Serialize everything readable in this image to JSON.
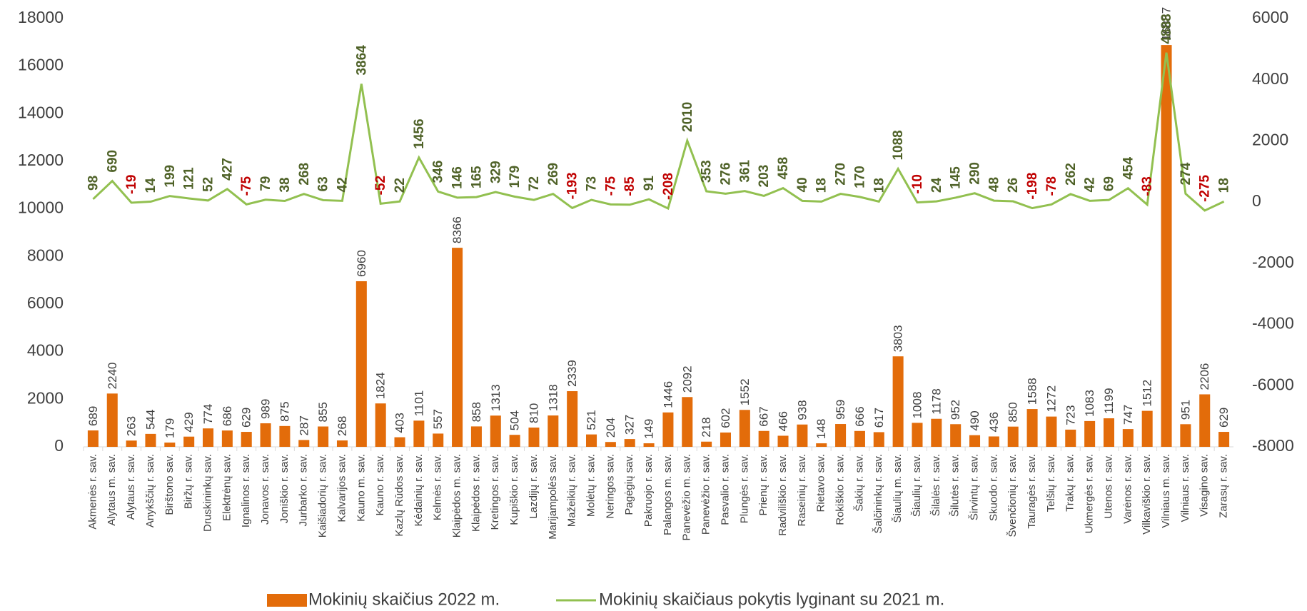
{
  "chart_data": {
    "type": "bar_line",
    "categories": [
      "Akmenės r. sav.",
      "Alytaus m. sav.",
      "Alytaus r. sav.",
      "Anykščių r. sav.",
      "Birštono sav.",
      "Biržų r. sav.",
      "Druskininkų sav.",
      "Elektrėnų sav.",
      "Ignalinos r. sav.",
      "Jonavos r. sav.",
      "Joniškio r. sav.",
      "Jurbarko r. sav.",
      "Kaišiadorių r. sav.",
      "Kalvarijos sav.",
      "Kauno m. sav.",
      "Kauno r. sav.",
      "Kazlų Rūdos sav.",
      "Kėdainių r. sav.",
      "Kelmės r. sav.",
      "Klaipėdos m. sav.",
      "Klaipėdos r. sav.",
      "Kretingos r. sav.",
      "Kupiškio r. sav.",
      "Lazdijų r. sav.",
      "Marijampolės sav.",
      "Mažeikių r. sav.",
      "Molėtų r. sav.",
      "Neringos sav.",
      "Pagėgių sav.",
      "Pakruojo r. sav.",
      "Palangos m. sav.",
      "Panevėžio m. sav.",
      "Panevėžio r. sav.",
      "Pasvalio r. sav.",
      "Plungės r. sav.",
      "Prienų r. sav.",
      "Radviliškio r. sav.",
      "Raseinių r. sav.",
      "Rietavo sav.",
      "Rokiškio r. sav.",
      "Šakių r. sav.",
      "Šalčininkų r. sav.",
      "Šiaulių m. sav.",
      "Šiaulių r. sav.",
      "Šilalės r. sav.",
      "Šilutės r. sav.",
      "Širvintų r. sav.",
      "Skuodo r. sav.",
      "Švenčionių r. sav.",
      "Tauragės r. sav.",
      "Telšių r. sav.",
      "Trakų r. sav.",
      "Ukmergės r. sav.",
      "Utenos r. sav.",
      "Varėnos r. sav.",
      "Vilkaviškio r. sav.",
      "Vilniaus m. sav.",
      "Vilniaus r. sav.",
      "Visagino sav.",
      "Zarasų r. sav."
    ],
    "series": [
      {
        "name": "Mokinių skaičius 2022 m.",
        "color": "#e36c0a",
        "type": "bar",
        "values": [
          689,
          2240,
          263,
          544,
          179,
          429,
          774,
          686,
          629,
          989,
          875,
          287,
          855,
          268,
          6960,
          1824,
          403,
          1101,
          557,
          8366,
          858,
          1313,
          504,
          810,
          1318,
          2339,
          521,
          204,
          327,
          149,
          1446,
          2092,
          218,
          602,
          1552,
          667,
          466,
          938,
          148,
          959,
          666,
          617,
          3803,
          1008,
          1178,
          952,
          490,
          436,
          850,
          1588,
          1272,
          723,
          1083,
          1199,
          747,
          1512,
          16887,
          951,
          2206,
          629
        ]
      },
      {
        "name": "Mokinių skaičiaus pokytis lyginant su 2021 m.",
        "color": "#92c050",
        "type": "line",
        "axis": "y2",
        "label_color": "#4f6228",
        "negative_label_color": "#c00000",
        "values": [
          98,
          690,
          -19,
          14,
          199,
          121,
          52,
          427,
          -75,
          79,
          38,
          268,
          63,
          42,
          3864,
          -52,
          22,
          1456,
          346,
          146,
          165,
          329,
          179,
          72,
          269,
          -193,
          73,
          -75,
          -85,
          91,
          -208,
          2010,
          353,
          276,
          361,
          203,
          458,
          40,
          18,
          270,
          170,
          18,
          1088,
          -10,
          24,
          145,
          290,
          48,
          26,
          -198,
          -78,
          262,
          42,
          69,
          454,
          -83,
          4888,
          274,
          -275,
          18
        ]
      }
    ],
    "ylim": [
      0,
      18000
    ],
    "yticks": [
      0,
      2000,
      4000,
      6000,
      8000,
      10000,
      12000,
      14000,
      16000,
      18000
    ],
    "y2lim": [
      -8000,
      6000
    ],
    "y2ticks": [
      -8000,
      -6000,
      -4000,
      -2000,
      0,
      2000,
      4000,
      6000
    ],
    "legend": "bottom"
  }
}
